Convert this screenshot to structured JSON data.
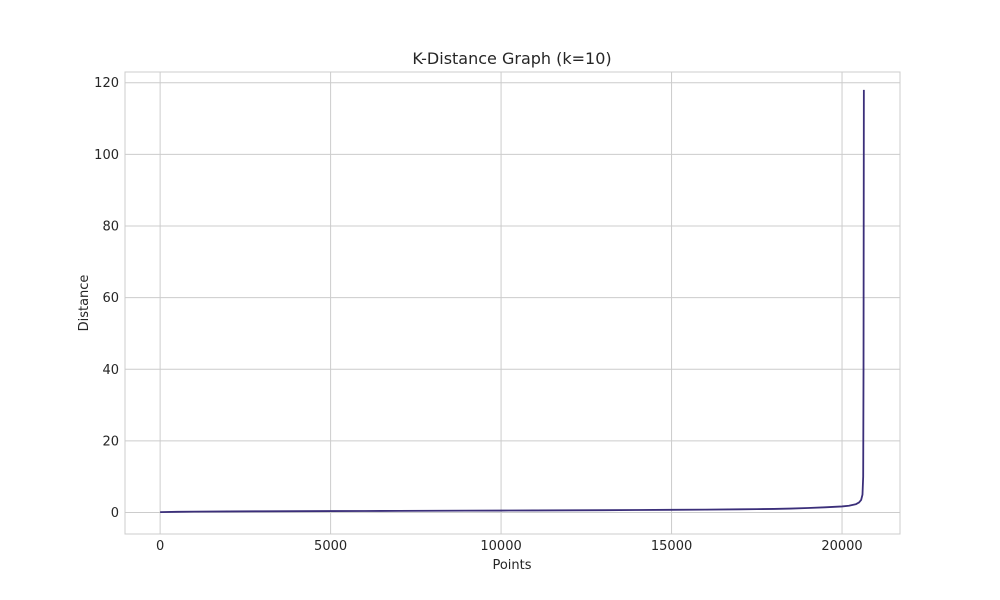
{
  "chart_data": {
    "type": "line",
    "title": "K-Distance Graph (k=10)",
    "xlabel": "Points",
    "ylabel": "Distance",
    "xlim": [
      -1030,
      21700
    ],
    "ylim": [
      -6,
      123
    ],
    "xticks": [
      0,
      5000,
      10000,
      15000,
      20000
    ],
    "yticks": [
      0,
      20,
      40,
      60,
      80,
      100,
      120
    ],
    "grid": true,
    "line_color": "#3b2f7a",
    "series": [
      {
        "x": [
          0,
          500,
          1000,
          2000,
          3000,
          4000,
          5000,
          6000,
          7000,
          8000,
          9000,
          10000,
          11000,
          12000,
          13000,
          14000,
          15000,
          16000,
          17000,
          17500,
          18000,
          18500,
          19000,
          19500,
          20000,
          20200,
          20400,
          20500,
          20560,
          20600,
          20620,
          20630,
          20640
        ],
        "y": [
          0.1,
          0.2,
          0.25,
          0.3,
          0.34,
          0.37,
          0.4,
          0.43,
          0.46,
          0.49,
          0.52,
          0.55,
          0.58,
          0.61,
          0.65,
          0.7,
          0.75,
          0.8,
          0.9,
          0.95,
          1.0,
          1.1,
          1.25,
          1.45,
          1.7,
          1.9,
          2.3,
          2.8,
          3.5,
          5,
          10,
          40,
          118
        ]
      }
    ]
  }
}
